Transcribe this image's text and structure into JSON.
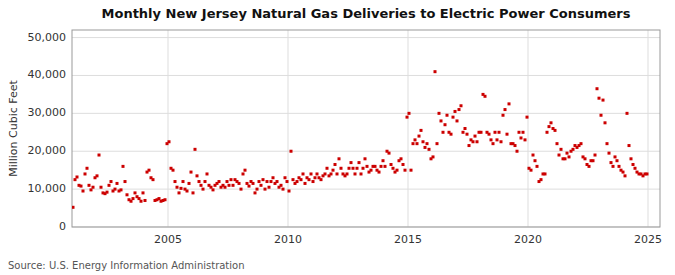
{
  "chart_data": {
    "type": "scatter",
    "title": "Monthly New Jersey Natural Gas Deliveries to Electric Power Consumers",
    "y_label": "Million Cubic Feet",
    "annotations": [
      "Source: U.S. Energy Information Administration"
    ],
    "color": "#cc0000",
    "marker": "square",
    "grid": true,
    "xlim": [
      2001.0,
      2025.5
    ],
    "xticks": [
      2005,
      2010,
      2015,
      2020,
      2025
    ],
    "ylim": [
      0,
      52000
    ],
    "yticks": [
      0,
      {
        "value": 10000,
        "label": "10,000"
      },
      {
        "value": 20000,
        "label": "20,000"
      },
      {
        "value": 30000,
        "label": "30,000"
      },
      {
        "value": 40000,
        "label": "40,000"
      },
      {
        "value": 50000,
        "label": "50,000"
      }
    ],
    "x": [
      2001.041666666667,
      2001.125,
      2001.208333333333,
      2001.291666666667,
      2001.375,
      2001.458333333333,
      2001.541666666667,
      2001.625,
      2001.708333333333,
      2001.791666666667,
      2001.875,
      2001.958333333333,
      2002.041666666667,
      2002.125,
      2002.208333333333,
      2002.291666666667,
      2002.375,
      2002.458333333333,
      2002.541666666667,
      2002.625,
      2002.708333333333,
      2002.791666666667,
      2002.875,
      2002.958333333333,
      2003.041666666667,
      2003.125,
      2003.208333333333,
      2003.291666666667,
      2003.375,
      2003.458333333333,
      2003.541666666667,
      2003.625,
      2003.708333333333,
      2003.791666666667,
      2003.875,
      2003.958333333333,
      2004.041666666667,
      2004.125,
      2004.208333333333,
      2004.291666666667,
      2004.375,
      2004.458333333333,
      2004.541666666667,
      2004.625,
      2004.708333333333,
      2004.791666666667,
      2004.875,
      2004.958333333333,
      2005.041666666667,
      2005.125,
      2005.208333333333,
      2005.291666666667,
      2005.375,
      2005.458333333333,
      2005.541666666667,
      2005.625,
      2005.708333333333,
      2005.791666666667,
      2005.875,
      2005.958333333333,
      2006.041666666667,
      2006.125,
      2006.208333333333,
      2006.291666666667,
      2006.375,
      2006.458333333333,
      2006.541666666667,
      2006.625,
      2006.708333333333,
      2006.791666666667,
      2006.875,
      2006.958333333333,
      2007.041666666667,
      2007.125,
      2007.208333333333,
      2007.291666666667,
      2007.375,
      2007.458333333333,
      2007.541666666667,
      2007.625,
      2007.708333333333,
      2007.791666666667,
      2007.875,
      2007.958333333333,
      2008.041666666667,
      2008.125,
      2008.208333333333,
      2008.291666666667,
      2008.375,
      2008.458333333333,
      2008.541666666667,
      2008.625,
      2008.708333333333,
      2008.791666666667,
      2008.875,
      2008.958333333333,
      2009.041666666667,
      2009.125,
      2009.208333333333,
      2009.291666666667,
      2009.375,
      2009.458333333333,
      2009.541666666667,
      2009.625,
      2009.708333333333,
      2009.791666666667,
      2009.875,
      2009.958333333333,
      2010.041666666667,
      2010.125,
      2010.208333333333,
      2010.291666666667,
      2010.375,
      2010.458333333333,
      2010.541666666667,
      2010.625,
      2010.708333333333,
      2010.791666666667,
      2010.875,
      2010.958333333333,
      2011.041666666667,
      2011.125,
      2011.208333333333,
      2011.291666666667,
      2011.375,
      2011.458333333333,
      2011.541666666667,
      2011.625,
      2011.708333333333,
      2011.791666666667,
      2011.875,
      2011.958333333333,
      2012.041666666667,
      2012.125,
      2012.208333333333,
      2012.291666666667,
      2012.375,
      2012.458333333333,
      2012.541666666667,
      2012.625,
      2012.708333333333,
      2012.791666666667,
      2012.875,
      2012.958333333333,
      2013.041666666667,
      2013.125,
      2013.208333333333,
      2013.291666666667,
      2013.375,
      2013.458333333333,
      2013.541666666667,
      2013.625,
      2013.708333333333,
      2013.791666666667,
      2013.875,
      2013.958333333333,
      2014.041666666667,
      2014.125,
      2014.208333333333,
      2014.291666666667,
      2014.375,
      2014.458333333333,
      2014.541666666667,
      2014.625,
      2014.708333333333,
      2014.791666666667,
      2014.875,
      2014.958333333333,
      2015.041666666667,
      2015.125,
      2015.208333333333,
      2015.291666666667,
      2015.375,
      2015.458333333333,
      2015.541666666667,
      2015.625,
      2015.708333333333,
      2015.791666666667,
      2015.875,
      2015.958333333333,
      2016.041666666667,
      2016.125,
      2016.208333333333,
      2016.291666666667,
      2016.375,
      2016.458333333333,
      2016.541666666667,
      2016.625,
      2016.708333333333,
      2016.791666666667,
      2016.875,
      2016.958333333333,
      2017.041666666667,
      2017.125,
      2017.208333333333,
      2017.291666666667,
      2017.375,
      2017.458333333333,
      2017.541666666667,
      2017.625,
      2017.708333333333,
      2017.791666666667,
      2017.875,
      2017.958333333333,
      2018.041666666667,
      2018.125,
      2018.208333333333,
      2018.291666666667,
      2018.375,
      2018.458333333333,
      2018.541666666667,
      2018.625,
      2018.708333333333,
      2018.791666666667,
      2018.875,
      2018.958333333333,
      2019.041666666667,
      2019.125,
      2019.208333333333,
      2019.291666666667,
      2019.375,
      2019.458333333333,
      2019.541666666667,
      2019.625,
      2019.708333333333,
      2019.791666666667,
      2019.875,
      2019.958333333333,
      2020.041666666667,
      2020.125,
      2020.208333333333,
      2020.291666666667,
      2020.375,
      2020.458333333333,
      2020.541666666667,
      2020.625,
      2020.708333333333,
      2020.791666666667,
      2020.875,
      2020.958333333333,
      2021.041666666667,
      2021.125,
      2021.208333333333,
      2021.291666666667,
      2021.375,
      2021.458333333333,
      2021.541666666667,
      2021.625,
      2021.708333333333,
      2021.791666666667,
      2021.875,
      2021.958333333333,
      2022.041666666667,
      2022.125,
      2022.208333333333,
      2022.291666666667,
      2022.375,
      2022.458333333333,
      2022.541666666667,
      2022.625,
      2022.708333333333,
      2022.791666666667,
      2022.875,
      2022.958333333333,
      2023.041666666667,
      2023.125,
      2023.208333333333,
      2023.291666666667,
      2023.375,
      2023.458333333333,
      2023.541666666667,
      2023.625,
      2023.708333333333,
      2023.791666666667,
      2023.875,
      2023.958333333333,
      2024.041666666667,
      2024.125,
      2024.208333333333,
      2024.291666666667,
      2024.375,
      2024.458333333333,
      2024.541666666667,
      2024.625,
      2024.708333333333,
      2024.791666666667,
      2024.875,
      2024.958333333333
    ],
    "values": [
      5200,
      12500,
      13200,
      11000,
      10800,
      9500,
      14000,
      15500,
      11000,
      9800,
      10500,
      13000,
      13500,
      19000,
      10500,
      9000,
      8800,
      9200,
      11000,
      12000,
      9500,
      10000,
      11500,
      9500,
      9800,
      16000,
      12000,
      8500,
      7200,
      6800,
      7500,
      9000,
      8000,
      7500,
      6800,
      9000,
      7000,
      14500,
      15000,
      13000,
      12500,
      7000,
      7200,
      7500,
      6800,
      7000,
      7200,
      22000,
      22500,
      15500,
      15000,
      12000,
      10500,
      9000,
      10200,
      12000,
      10000,
      9500,
      11500,
      14500,
      9000,
      20500,
      13500,
      12000,
      11000,
      10000,
      12000,
      14000,
      11000,
      10500,
      9800,
      11000,
      11500,
      12000,
      10500,
      11000,
      10500,
      12000,
      11000,
      12500,
      11000,
      12500,
      12000,
      11500,
      10000,
      14000,
      15000,
      11500,
      10800,
      12000,
      11500,
      9000,
      10000,
      12000,
      11000,
      12500,
      10000,
      12000,
      10500,
      12000,
      13000,
      11500,
      12000,
      10500,
      11000,
      10000,
      13000,
      12000,
      9500,
      20000,
      12500,
      11500,
      12000,
      13000,
      12500,
      14000,
      11500,
      13000,
      12500,
      14000,
      12000,
      13000,
      14000,
      13000,
      12500,
      13500,
      14000,
      15500,
      13500,
      14000,
      15000,
      16500,
      14000,
      18000,
      15500,
      14000,
      13500,
      14000,
      15500,
      17000,
      15500,
      14000,
      15500,
      17000,
      14000,
      15500,
      18000,
      16000,
      14500,
      15000,
      16000,
      16000,
      15000,
      14500,
      16000,
      17500,
      16000,
      20000,
      19500,
      16500,
      15500,
      14500,
      15000,
      17500,
      18000,
      16500,
      15000,
      29000,
      30000,
      15000,
      22000,
      23000,
      22000,
      24000,
      25500,
      22500,
      21000,
      22000,
      20500,
      18000,
      18500,
      41000,
      22000,
      30000,
      28000,
      25000,
      27000,
      29500,
      25000,
      24500,
      29000,
      30500,
      28000,
      31000,
      32000,
      25000,
      26000,
      24500,
      21500,
      23000,
      22500,
      24000,
      22500,
      25000,
      25000,
      35000,
      34500,
      25000,
      24500,
      23000,
      22000,
      25000,
      23000,
      25000,
      22500,
      29500,
      31000,
      24500,
      32500,
      22000,
      22000,
      21500,
      20000,
      25000,
      23500,
      25000,
      23000,
      29000,
      15500,
      15000,
      19000,
      17500,
      16000,
      12000,
      12500,
      14000,
      14000,
      25000,
      26500,
      27500,
      26000,
      25500,
      22000,
      19000,
      20500,
      18000,
      18000,
      19500,
      18500,
      20000,
      20500,
      21500,
      21000,
      21500,
      22000,
      18500,
      18000,
      16500,
      16000,
      17500,
      17500,
      19000,
      36500,
      34000,
      29500,
      33500,
      27500,
      22000,
      19500,
      17000,
      16000,
      18500,
      17500,
      16000,
      15000,
      14500,
      13500,
      30000,
      21500,
      18000,
      16500,
      15500,
      14500,
      14000,
      14000,
      13500,
      14000,
      14000
    ]
  }
}
